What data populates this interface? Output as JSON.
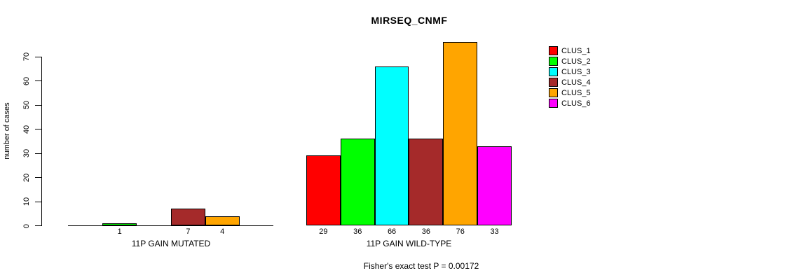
{
  "title": "MIRSEQ_CNMF",
  "chart_data": {
    "type": "bar",
    "title": "MIRSEQ_CNMF",
    "ylabel": "number of cases",
    "ylim": [
      0,
      70
    ],
    "yticks": [
      0,
      10,
      20,
      30,
      40,
      50,
      60,
      70
    ],
    "grid": false,
    "legend_position": "right",
    "categories": [
      "CLUS_1",
      "CLUS_2",
      "CLUS_3",
      "CLUS_4",
      "CLUS_5",
      "CLUS_6"
    ],
    "series_colors": [
      "#ff0000",
      "#00ff00",
      "#00ffff",
      "#a52a2a",
      "#ffa500",
      "#ff00ff"
    ],
    "groups": [
      {
        "label": "11P GAIN MUTATED",
        "values": [
          0,
          1,
          0,
          7,
          4,
          0
        ]
      },
      {
        "label": "11P GAIN WILD-TYPE",
        "values": [
          29,
          36,
          66,
          36,
          76,
          33
        ]
      }
    ],
    "annotation": "Fisher's exact test P = 0.00172"
  },
  "legend": {
    "items": [
      {
        "label": "CLUS_1",
        "color": "#ff0000"
      },
      {
        "label": "CLUS_2",
        "color": "#00ff00"
      },
      {
        "label": "CLUS_3",
        "color": "#00ffff"
      },
      {
        "label": "CLUS_4",
        "color": "#a52a2a"
      },
      {
        "label": "CLUS_5",
        "color": "#ffa500"
      },
      {
        "label": "CLUS_6",
        "color": "#ff00ff"
      }
    ]
  }
}
